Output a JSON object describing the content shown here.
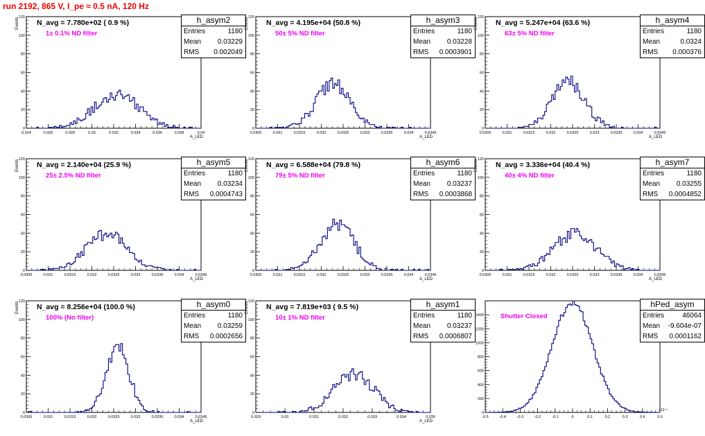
{
  "header": {
    "run_title": "run 2192,   865 V, I_pe ≈ 0.5 nA, 120 Hz"
  },
  "chart_data": [
    {
      "name": "h_asym2",
      "type": "bar",
      "n_avg_label": "N_avg = 7.780e+02 ( 0.9 %)",
      "filter_label": "1± 0.1% ND filter",
      "ylabel": "Events",
      "xlabel": "A_LED",
      "x_range": [
        0.024,
        0.04
      ],
      "y_range": [
        0,
        120
      ],
      "x_ticks": [
        "0.024",
        "0.026",
        "0.028",
        "0.03",
        "0.032",
        "0.034",
        "0.036",
        "0.038",
        "0.04"
      ],
      "y_ticks": [
        "0",
        "20",
        "40",
        "60",
        "80",
        "100",
        "120"
      ],
      "stats": {
        "entries_label": "Entries",
        "entries": "1180",
        "mean_label": "Mean",
        "mean": "0.03229",
        "rms_label": "RMS",
        "rms": "0.002049"
      },
      "mean": 0.03229,
      "rms": 0.002049,
      "entries": 1180
    },
    {
      "name": "h_asym3",
      "type": "bar",
      "n_avg_label": "N_avg = 4.195e+04 (50.8 %)",
      "filter_label": "50± 5% ND filter",
      "ylabel": "Events",
      "xlabel": "A_LED",
      "x_range": [
        0.0305,
        0.0345
      ],
      "y_range": [
        0,
        120
      ],
      "x_ticks": [
        "0.0305",
        "0.031",
        "0.0315",
        "0.032",
        "0.0325",
        "0.033",
        "0.0335",
        "0.034",
        "0.0345"
      ],
      "y_ticks": [
        "0",
        "20",
        "40",
        "60",
        "80",
        "100",
        "120"
      ],
      "stats": {
        "entries_label": "Entries",
        "entries": "1180",
        "mean_label": "Mean",
        "mean": "0.03228",
        "rms_label": "RMS",
        "rms": "0.0003901"
      },
      "mean": 0.03228,
      "rms": 0.0003901,
      "entries": 1180
    },
    {
      "name": "h_asym4",
      "type": "bar",
      "n_avg_label": "N_avg = 5.247e+04 (63.6 %)",
      "filter_label": "63± 5% ND filter",
      "ylabel": "Events",
      "xlabel": "A_LED",
      "x_range": [
        0.0305,
        0.0345
      ],
      "y_range": [
        0,
        120
      ],
      "x_ticks": [
        "0.0305",
        "0.031",
        "0.0315",
        "0.032",
        "0.0325",
        "0.033",
        "0.0335",
        "0.034",
        "0.0345"
      ],
      "y_ticks": [
        "0",
        "20",
        "40",
        "60",
        "80",
        "100",
        "120"
      ],
      "stats": {
        "entries_label": "Entries",
        "entries": "1180",
        "mean_label": "Mean",
        "mean": "0.0324",
        "rms_label": "RMS",
        "rms": "0.000376"
      },
      "mean": 0.0324,
      "rms": 0.000376,
      "entries": 1180
    },
    {
      "name": "h_asym5",
      "type": "bar",
      "n_avg_label": "N_avg = 2.140e+04 (25.9 %)",
      "filter_label": "25± 2.5% ND filter",
      "ylabel": "Events",
      "xlabel": "A_LED",
      "x_range": [
        0.0305,
        0.0345
      ],
      "y_range": [
        0,
        120
      ],
      "x_ticks": [
        "0.0305",
        "0.031",
        "0.0315",
        "0.032",
        "0.0325",
        "0.033",
        "0.0335",
        "0.034",
        "0.0345"
      ],
      "y_ticks": [
        "0",
        "20",
        "40",
        "60",
        "80",
        "100",
        "120"
      ],
      "stats": {
        "entries_label": "Entries",
        "entries": "1180",
        "mean_label": "Mean",
        "mean": "0.03234",
        "rms_label": "RMS",
        "rms": "0.0004743"
      },
      "mean": 0.03234,
      "rms": 0.0004743,
      "entries": 1180
    },
    {
      "name": "h_asym6",
      "type": "bar",
      "n_avg_label": "N_avg = 6.588e+04 (79.8 %)",
      "filter_label": "79± 5% ND filter",
      "ylabel": "Events",
      "xlabel": "A_LED",
      "x_range": [
        0.0305,
        0.0345
      ],
      "y_range": [
        0,
        120
      ],
      "x_ticks": [
        "0.0305",
        "0.031",
        "0.0315",
        "0.032",
        "0.0325",
        "0.033",
        "0.0335",
        "0.034",
        "0.0345"
      ],
      "y_ticks": [
        "0",
        "20",
        "40",
        "60",
        "80",
        "100",
        "120"
      ],
      "stats": {
        "entries_label": "Entries",
        "entries": "1180",
        "mean_label": "Mean",
        "mean": "0.03237",
        "rms_label": "RMS",
        "rms": "0.0003868"
      },
      "mean": 0.03237,
      "rms": 0.0003868,
      "entries": 1180
    },
    {
      "name": "h_asym7",
      "type": "bar",
      "n_avg_label": "N_avg = 3.336e+04 (40.4 %)",
      "filter_label": "40± 4% ND filter",
      "ylabel": "Events",
      "xlabel": "A_LED",
      "x_range": [
        0.0305,
        0.0345
      ],
      "y_range": [
        0,
        120
      ],
      "x_ticks": [
        "0.0305",
        "0.031",
        "0.0315",
        "0.032",
        "0.0325",
        "0.033",
        "0.0335",
        "0.034",
        "0.0345"
      ],
      "y_ticks": [
        "0",
        "20",
        "40",
        "60",
        "80",
        "100",
        "120"
      ],
      "stats": {
        "entries_label": "Entries",
        "entries": "1180",
        "mean_label": "Mean",
        "mean": "0.03255",
        "rms_label": "RMS",
        "rms": "0.0004852"
      },
      "mean": 0.03255,
      "rms": 0.0004852,
      "entries": 1180
    },
    {
      "name": "h_asym0",
      "type": "bar",
      "n_avg_label": "N_avg = 8.256e+04 (100.0 %)",
      "filter_label": "100% (No filter)",
      "ylabel": "Events",
      "xlabel": "A_LED",
      "x_range": [
        0.0305,
        0.0345
      ],
      "y_range": [
        0,
        120
      ],
      "x_ticks": [
        "0.0305",
        "0.031",
        "0.0315",
        "0.032",
        "0.0325",
        "0.033",
        "0.0335",
        "0.034",
        "0.0345"
      ],
      "y_ticks": [
        "0",
        "20",
        "40",
        "60",
        "80",
        "100",
        "120"
      ],
      "stats": {
        "entries_label": "Entries",
        "entries": "1180",
        "mean_label": "Mean",
        "mean": "0.03259",
        "rms_label": "RMS",
        "rms": "0.0002656"
      },
      "mean": 0.03259,
      "rms": 0.0002656,
      "entries": 1180
    },
    {
      "name": "h_asym1",
      "type": "bar",
      "n_avg_label": "N_avg = 7.819e+03 ( 9.5 %)",
      "filter_label": "10± 1% ND filter",
      "ylabel": "Events",
      "xlabel": "A_LED",
      "x_range": [
        0.029,
        0.035
      ],
      "y_range": [
        0,
        120
      ],
      "x_ticks": [
        "0.029",
        "0.03",
        "0.031",
        "0.032",
        "0.033",
        "0.034",
        "0.035"
      ],
      "y_ticks": [
        "0",
        "20",
        "40",
        "60",
        "80",
        "100",
        "120"
      ],
      "stats": {
        "entries_label": "Entries",
        "entries": "1180",
        "mean_label": "Mean",
        "mean": "0.03237",
        "rms_label": "RMS",
        "rms": "0.0006807"
      },
      "mean": 0.03237,
      "rms": 0.0006807,
      "entries": 1180
    },
    {
      "name": "hPed_asym",
      "type": "bar",
      "n_avg_label": "",
      "filter_label": "Shutter Closed",
      "ylabel": "",
      "xlabel": "",
      "x_exponent": "×10⁻³",
      "x_range": [
        -0.5,
        0.5
      ],
      "y_range": [
        0,
        1600
      ],
      "x_ticks": [
        "-0.5",
        "-0.4",
        "-0.3",
        "-0.2",
        "-0.1",
        "0",
        "0.1",
        "0.2",
        "0.3",
        "0.4",
        "0.5"
      ],
      "y_ticks": [
        "0",
        "200",
        "400",
        "600",
        "800",
        "1000",
        "1200",
        "1400"
      ],
      "stats": {
        "entries_label": "Entries",
        "entries": "46064",
        "mean_label": "Mean",
        "mean": "-9.604e-07",
        "rms_label": "RMS",
        "rms": "0.0001162"
      },
      "mean": -0.00096,
      "rms": 0.1162,
      "entries": 46064
    }
  ]
}
